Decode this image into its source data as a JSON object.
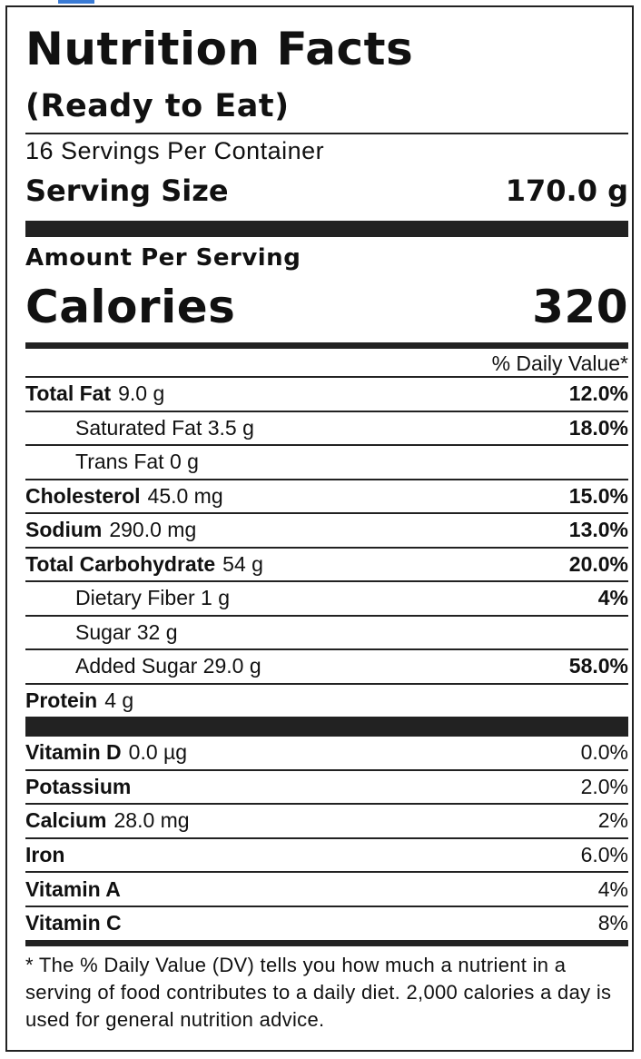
{
  "colors": {
    "accent": "#3a7bd5",
    "ink": "#222222"
  },
  "label": {
    "title": "Nutrition Facts",
    "subtitle": "(Ready to Eat)",
    "servings_per_container": "16 Servings Per Container",
    "serving_size_label": "Serving Size",
    "serving_size_value": "170.0 g",
    "amount_per_serving": "Amount Per Serving",
    "calories_label": "Calories",
    "calories_value": "320",
    "daily_value_header": "% Daily Value*",
    "nutrients": [
      {
        "name": "Total Fat",
        "amount": "9.0 g",
        "dv": "12.0%"
      },
      {
        "name": "Saturated Fat 3.5 g",
        "amount": "",
        "dv": "18.0%"
      },
      {
        "name": "Trans Fat 0 g",
        "amount": "",
        "dv": ""
      },
      {
        "name": "Cholesterol",
        "amount": "45.0 mg",
        "dv": "15.0%"
      },
      {
        "name": "Sodium",
        "amount": "290.0 mg",
        "dv": "13.0%"
      },
      {
        "name": "Total Carbohydrate",
        "amount": "54 g",
        "dv": "20.0%"
      },
      {
        "name": "Dietary Fiber 1 g",
        "amount": "",
        "dv": "4%"
      },
      {
        "name": "Sugar 32 g",
        "amount": "",
        "dv": ""
      },
      {
        "name": "Added Sugar 29.0 g",
        "amount": "",
        "dv": "58.0%"
      },
      {
        "name": "Protein",
        "amount": "4 g",
        "dv": ""
      }
    ],
    "vitamins": [
      {
        "name": "Vitamin D",
        "amount": "0.0 µg",
        "dv": "0.0%"
      },
      {
        "name": "Potassium",
        "amount": "",
        "dv": "2.0%"
      },
      {
        "name": "Calcium",
        "amount": "28.0 mg",
        "dv": "2%"
      },
      {
        "name": "Iron",
        "amount": "",
        "dv": "6.0%"
      },
      {
        "name": "Vitamin A",
        "amount": "",
        "dv": "4%"
      },
      {
        "name": "Vitamin C",
        "amount": "",
        "dv": "8%"
      }
    ],
    "footnote": "* The % Daily Value (DV) tells you how much a nutrient in a serving of food contributes to a daily diet. 2,000 calories a day is used for general nutrition advice."
  }
}
